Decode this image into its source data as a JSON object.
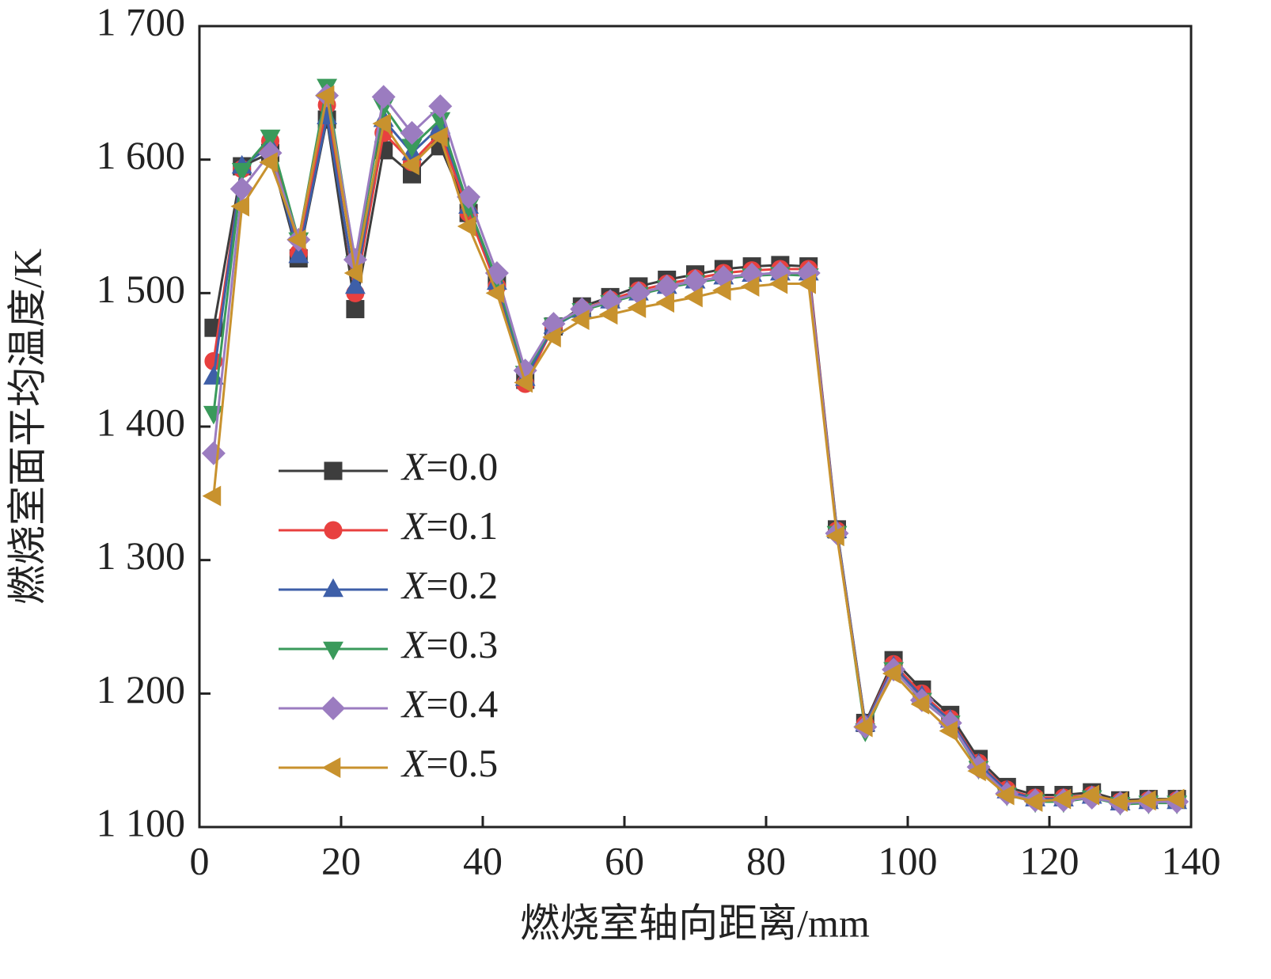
{
  "chart_data": {
    "type": "line",
    "x_label": "燃烧室轴向距离/mm",
    "y_label": "燃烧室面平均温度/K",
    "x": [
      2,
      6,
      10,
      14,
      18,
      22,
      26,
      30,
      34,
      38,
      42,
      46,
      50,
      54,
      58,
      62,
      66,
      70,
      74,
      78,
      82,
      86,
      90,
      94,
      98,
      102,
      106,
      110,
      114,
      118,
      122,
      126,
      130,
      134,
      138
    ],
    "xlim": [
      0,
      140
    ],
    "xticks": [
      0,
      20,
      40,
      60,
      80,
      100,
      120,
      140
    ],
    "ylim": [
      1100,
      1700
    ],
    "yticks": [
      {
        "value": 1100,
        "label": "1 100"
      },
      {
        "value": 1200,
        "label": "1 200"
      },
      {
        "value": 1300,
        "label": "1 300"
      },
      {
        "value": 1400,
        "label": "1 400"
      },
      {
        "value": 1500,
        "label": "1 500"
      },
      {
        "value": 1600,
        "label": "1 600"
      },
      {
        "value": 1700,
        "label": "1 700"
      }
    ],
    "legend": "lower left",
    "series": [
      {
        "name": "X=0.0",
        "color": "#3d3d3d",
        "marker": "square",
        "values": [
          1474,
          1595,
          1605,
          1526,
          1630,
          1488,
          1607,
          1589,
          1610,
          1560,
          1510,
          1435,
          1475,
          1490,
          1497,
          1505,
          1510,
          1514,
          1518,
          1520,
          1521,
          1520,
          1323,
          1178,
          1225,
          1203,
          1184,
          1151,
          1130,
          1124,
          1124,
          1126,
          1120,
          1121,
          1121
        ]
      },
      {
        "name": "X=0.1",
        "color": "#e8403f",
        "marker": "circle",
        "values": [
          1449,
          1593,
          1614,
          1530,
          1641,
          1500,
          1620,
          1598,
          1620,
          1560,
          1505,
          1432,
          1475,
          1488,
          1495,
          1502,
          1507,
          1511,
          1515,
          1517,
          1518,
          1518,
          1322,
          1177,
          1222,
          1200,
          1181,
          1148,
          1128,
          1122,
          1122,
          1124,
          1119,
          1120,
          1120
        ]
      },
      {
        "name": "X=0.2",
        "color": "#3e5fa8",
        "marker": "triangle-up",
        "values": [
          1437,
          1595,
          1610,
          1528,
          1632,
          1505,
          1630,
          1605,
          1625,
          1565,
          1508,
          1436,
          1475,
          1487,
          1494,
          1500,
          1505,
          1509,
          1512,
          1514,
          1515,
          1515,
          1322,
          1177,
          1220,
          1198,
          1180,
          1147,
          1127,
          1121,
          1121,
          1123,
          1118,
          1119,
          1119
        ]
      },
      {
        "name": "X=0.3",
        "color": "#3a9a5b",
        "marker": "triangle-down",
        "values": [
          1410,
          1592,
          1617,
          1540,
          1655,
          1522,
          1640,
          1610,
          1630,
          1565,
          1510,
          1440,
          1476,
          1487,
          1493,
          1499,
          1504,
          1508,
          1511,
          1513,
          1514,
          1513,
          1320,
          1172,
          1218,
          1195,
          1178,
          1144,
          1124,
          1119,
          1119,
          1122,
          1117,
          1118,
          1118
        ]
      },
      {
        "name": "X=0.4",
        "color": "#9b7cc0",
        "marker": "diamond",
        "values": [
          1380,
          1578,
          1605,
          1540,
          1648,
          1525,
          1647,
          1620,
          1640,
          1572,
          1515,
          1442,
          1477,
          1488,
          1494,
          1500,
          1505,
          1509,
          1512,
          1514,
          1515,
          1515,
          1320,
          1175,
          1218,
          1195,
          1178,
          1145,
          1125,
          1120,
          1120,
          1122,
          1118,
          1119,
          1119
        ]
      },
      {
        "name": "X=0.5",
        "color": "#c8922e",
        "marker": "triangle-left",
        "values": [
          1348,
          1565,
          1598,
          1540,
          1648,
          1515,
          1627,
          1596,
          1617,
          1550,
          1500,
          1433,
          1467,
          1480,
          1484,
          1489,
          1493,
          1497,
          1502,
          1505,
          1507,
          1507,
          1318,
          1175,
          1215,
          1192,
          1172,
          1142,
          1124,
          1119,
          1121,
          1124,
          1119,
          1120,
          1121
        ]
      }
    ]
  }
}
